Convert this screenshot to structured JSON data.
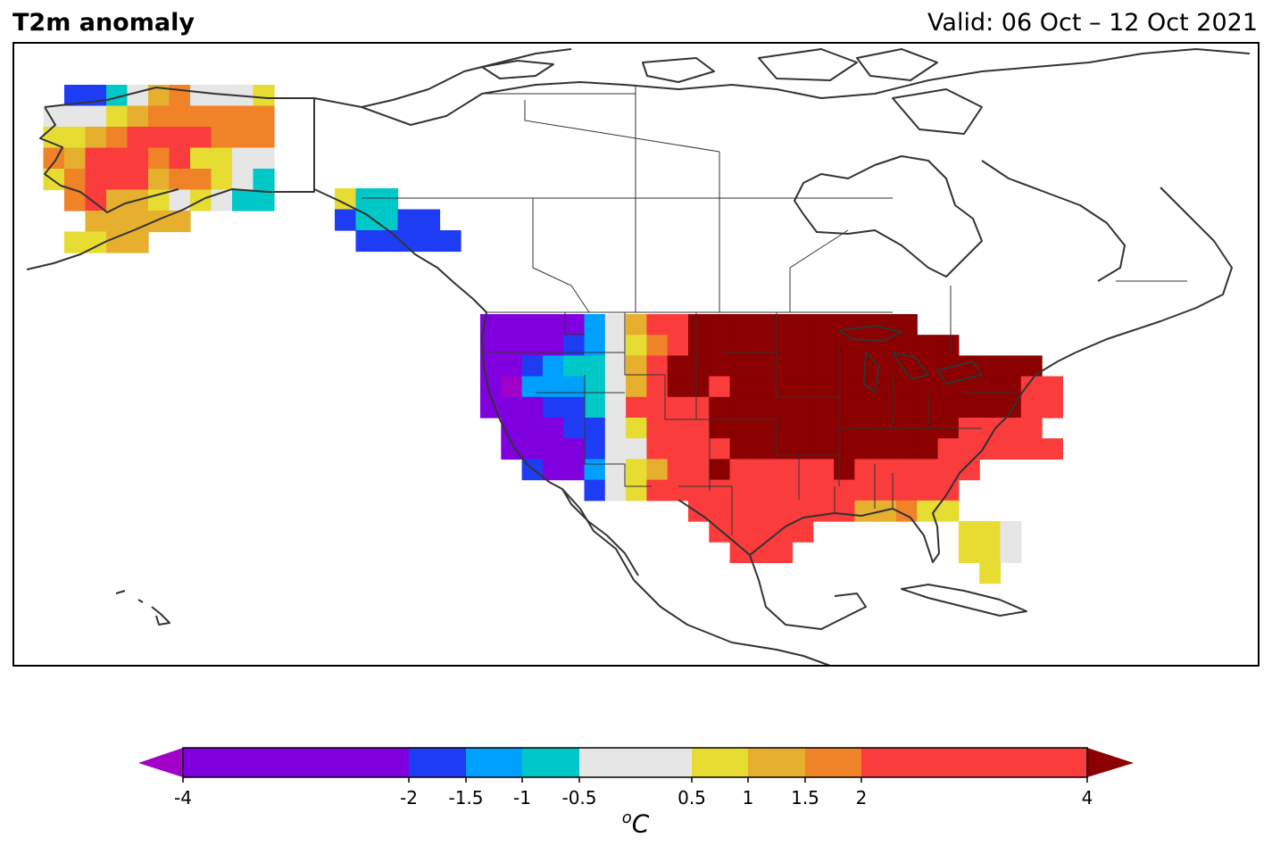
{
  "header": {
    "title": "T2m anomaly",
    "valid": "Valid: 06 Oct – 12 Oct 2021"
  },
  "colorbar": {
    "unit_base": "C",
    "unit_sup": "o",
    "bins": [
      {
        "from": -4,
        "to": -2,
        "color": "#8000e0"
      },
      {
        "from": -2,
        "to": -1.5,
        "color": "#1f3cf5"
      },
      {
        "from": -1.5,
        "to": -1,
        "color": "#00a0ff"
      },
      {
        "from": -1,
        "to": -0.5,
        "color": "#00c8c8"
      },
      {
        "from": -0.5,
        "to": 0.5,
        "color": "#e6e6e6"
      },
      {
        "from": 0.5,
        "to": 1,
        "color": "#e6dc32"
      },
      {
        "from": 1,
        "to": 1.5,
        "color": "#e6af2d"
      },
      {
        "from": 1.5,
        "to": 2,
        "color": "#f08228"
      },
      {
        "from": 2,
        "to": 4,
        "color": "#fa3c3c"
      }
    ],
    "under_color": "#a000c8",
    "over_color": "#8b0000",
    "ticks": [
      {
        "value": -4,
        "label": "-4"
      },
      {
        "value": -2,
        "label": "-2"
      },
      {
        "value": -1.5,
        "label": "-1.5"
      },
      {
        "value": -1,
        "label": "-1"
      },
      {
        "value": -0.5,
        "label": "-0.5"
      },
      {
        "value": 0.5,
        "label": "0.5"
      },
      {
        "value": 1,
        "label": "1"
      },
      {
        "value": 1.5,
        "label": "1.5"
      },
      {
        "value": 2,
        "label": "2"
      },
      {
        "value": 4,
        "label": "4"
      }
    ]
  },
  "anomaly_grid": {
    "legend": {
      "V": "#8000e0",
      "B": "#1f3cf5",
      "L": "#00a0ff",
      "C": "#00c8c8",
      "W": "#e6e6e6",
      "Y": "#e6dc32",
      "G": "#e6af2d",
      "O": "#f08228",
      "R": "#fa3c3c",
      "D": "#8b0000",
      "M": "#a000c8"
    },
    "alaska_rows": [
      "..BBCWGOWWWY",
      ".WWWYGOOOOOO",
      ".YYGORRRROOO",
      ".OGRRRORYYWW",
      ".YORRRGOOYWC",
      "..ORGGYWYWCC",
      "...GGGGG....",
      "..YYGG......"
    ],
    "panhandle_rows": [
      "YCC...",
      "BCCBB.",
      ".BBBBB"
    ],
    "conus_rows": [
      "VVVVVLWGRRDDDDDDDDDDD........",
      "VVVVBLWYORDDDDDDDDDDDDD......",
      "VVBLCCWGRDDDDDDDDDDDDDDDDDD.",
      "VMLLLCWGRDDRDDDDDDDDDDDDDDRR",
      "VVVBBCWRRRRDDDDDDDDDDDDDDDRR",
      ".VVVBBWYRRRDDDDDDDDDDDDRRRR.",
      ".VVVVBWWRRRRDDDDDDDDDDRRRRRR",
      "..BVVLWYGRRDRRRRRDRRRRRR....",
      ".....BWYRRRRRRRRRRRRRRR.....",
      "..........RRRRRRRRGGOYY.....",
      "...........RRRRR.......YYW..",
      "............RRR........YYW..",
      "........................Y..."
    ]
  }
}
